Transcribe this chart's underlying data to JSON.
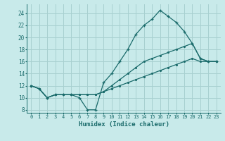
{
  "title": "",
  "xlabel": "Humidex (Indice chaleur)",
  "ylabel": "",
  "bg_color": "#c8eaea",
  "grid_color": "#a8d0d0",
  "line_color": "#1a6b6b",
  "xlim": [
    -0.5,
    23.5
  ],
  "ylim": [
    7.5,
    25.5
  ],
  "xticks": [
    0,
    1,
    2,
    3,
    4,
    5,
    6,
    7,
    8,
    9,
    10,
    11,
    12,
    13,
    14,
    15,
    16,
    17,
    18,
    19,
    20,
    21,
    22,
    23
  ],
  "yticks": [
    8,
    10,
    12,
    14,
    16,
    18,
    20,
    22,
    24
  ],
  "line1_x": [
    0,
    1,
    2,
    3,
    4,
    5,
    6,
    7,
    8,
    9,
    10,
    11,
    12,
    13,
    14,
    15,
    16,
    17,
    18,
    19,
    20,
    21,
    22,
    23
  ],
  "line1_y": [
    12,
    11.5,
    10,
    10.5,
    10.5,
    10.5,
    10,
    8,
    8,
    12.5,
    14,
    16,
    18,
    20.5,
    22,
    23,
    24.5,
    23.5,
    22.5,
    21,
    19,
    16.5,
    16,
    16
  ],
  "line2_x": [
    0,
    1,
    2,
    3,
    4,
    5,
    6,
    7,
    8,
    9,
    10,
    11,
    12,
    13,
    14,
    15,
    16,
    17,
    18,
    19,
    20,
    21,
    22,
    23
  ],
  "line2_y": [
    12,
    11.5,
    10,
    10.5,
    10.5,
    10.5,
    10.5,
    10.5,
    10.5,
    11,
    12,
    13,
    14,
    15,
    16,
    16.5,
    17,
    17.5,
    18,
    18.5,
    19,
    16.5,
    16,
    16
  ],
  "line3_x": [
    0,
    1,
    2,
    3,
    4,
    5,
    6,
    7,
    8,
    9,
    10,
    11,
    12,
    13,
    14,
    15,
    16,
    17,
    18,
    19,
    20,
    21,
    22,
    23
  ],
  "line3_y": [
    12,
    11.5,
    10,
    10.5,
    10.5,
    10.5,
    10.5,
    10.5,
    10.5,
    11,
    11.5,
    12,
    12.5,
    13,
    13.5,
    14,
    14.5,
    15,
    15.5,
    16,
    16.5,
    16,
    16,
    16
  ]
}
